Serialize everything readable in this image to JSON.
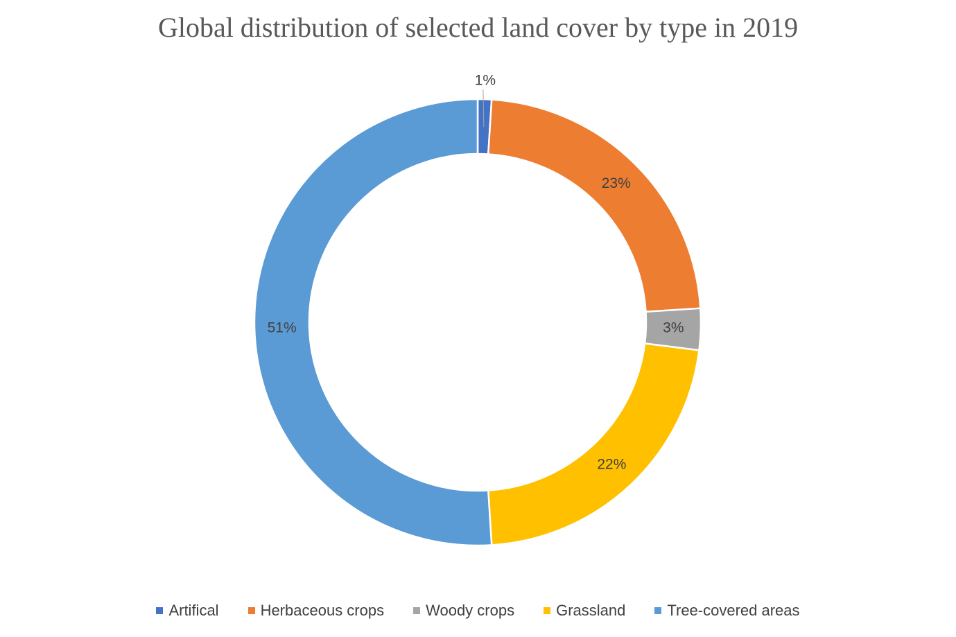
{
  "chart_data": {
    "type": "pie",
    "variant": "donut",
    "title": "Global distribution of selected land cover by type in 2019",
    "categories": [
      "Artifical",
      "Herbaceous crops",
      "Woody crops",
      "Grassland",
      "Tree-covered areas"
    ],
    "values": [
      1,
      23,
      3,
      22,
      51
    ],
    "data_labels": [
      "1%",
      "23%",
      "3%",
      "22%",
      "51%"
    ],
    "colors": [
      "#4472C4",
      "#ED7D31",
      "#A5A5A5",
      "#FFC000",
      "#5B9BD5"
    ],
    "legend_position": "bottom"
  }
}
